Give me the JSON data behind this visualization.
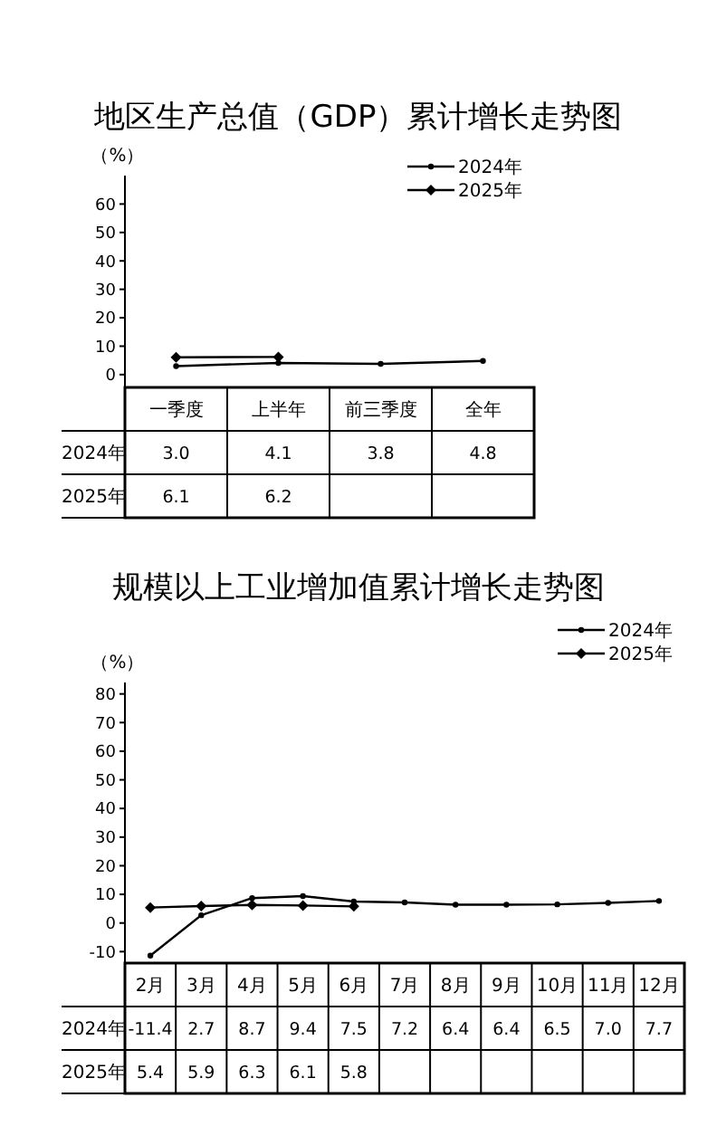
{
  "chart_data": [
    {
      "type": "line",
      "title": "地区生产总值（GDP）累计增长走势图",
      "ylabel": "（%）",
      "categories": [
        "一季度",
        "上半年",
        "前三季度",
        "全年"
      ],
      "ylim": [
        -4.5,
        70
      ],
      "yticks": [
        0,
        10,
        20,
        30,
        40,
        50,
        60
      ],
      "legend": "top right",
      "grid": false,
      "series": [
        {
          "name": "2024年",
          "color": "#000000",
          "marker": "circle",
          "values": [
            3.0,
            4.1,
            3.8,
            4.8
          ],
          "value_labels": [
            "3.0",
            "4.1",
            "3.8",
            "4.8"
          ]
        },
        {
          "name": "2025年",
          "color": "#000000",
          "marker": "diamond",
          "values": [
            6.1,
            6.2,
            null,
            null
          ],
          "value_labels": [
            "6.1",
            "6.2",
            null,
            null
          ]
        }
      ]
    },
    {
      "type": "line",
      "title": "规模以上工业增加值累计增长走势图",
      "ylabel": "（%）",
      "categories": [
        "2月",
        "3月",
        "4月",
        "5月",
        "6月",
        "7月",
        "8月",
        "9月",
        "10月",
        "11月",
        "12月"
      ],
      "ylim": [
        -14,
        84
      ],
      "yticks": [
        -10,
        0,
        10,
        20,
        30,
        40,
        50,
        60,
        70,
        80
      ],
      "legend": "top right",
      "grid": false,
      "series": [
        {
          "name": "2024年",
          "color": "#000000",
          "marker": "circle",
          "values": [
            -11.4,
            2.7,
            8.7,
            9.4,
            7.5,
            7.2,
            6.4,
            6.4,
            6.5,
            7.0,
            7.7
          ],
          "value_labels": [
            "-11.4",
            "2.7",
            "8.7",
            "9.4",
            "7.5",
            "7.2",
            "6.4",
            "6.4",
            "6.5",
            "7.0",
            "7.7"
          ]
        },
        {
          "name": "2025年",
          "color": "#000000",
          "marker": "diamond",
          "values": [
            5.4,
            5.9,
            6.3,
            6.1,
            5.8,
            null,
            null,
            null,
            null,
            null,
            null
          ],
          "value_labels": [
            "5.4",
            "5.9",
            "6.3",
            "6.1",
            "5.8",
            null,
            null,
            null,
            null,
            null,
            null
          ]
        }
      ]
    }
  ]
}
